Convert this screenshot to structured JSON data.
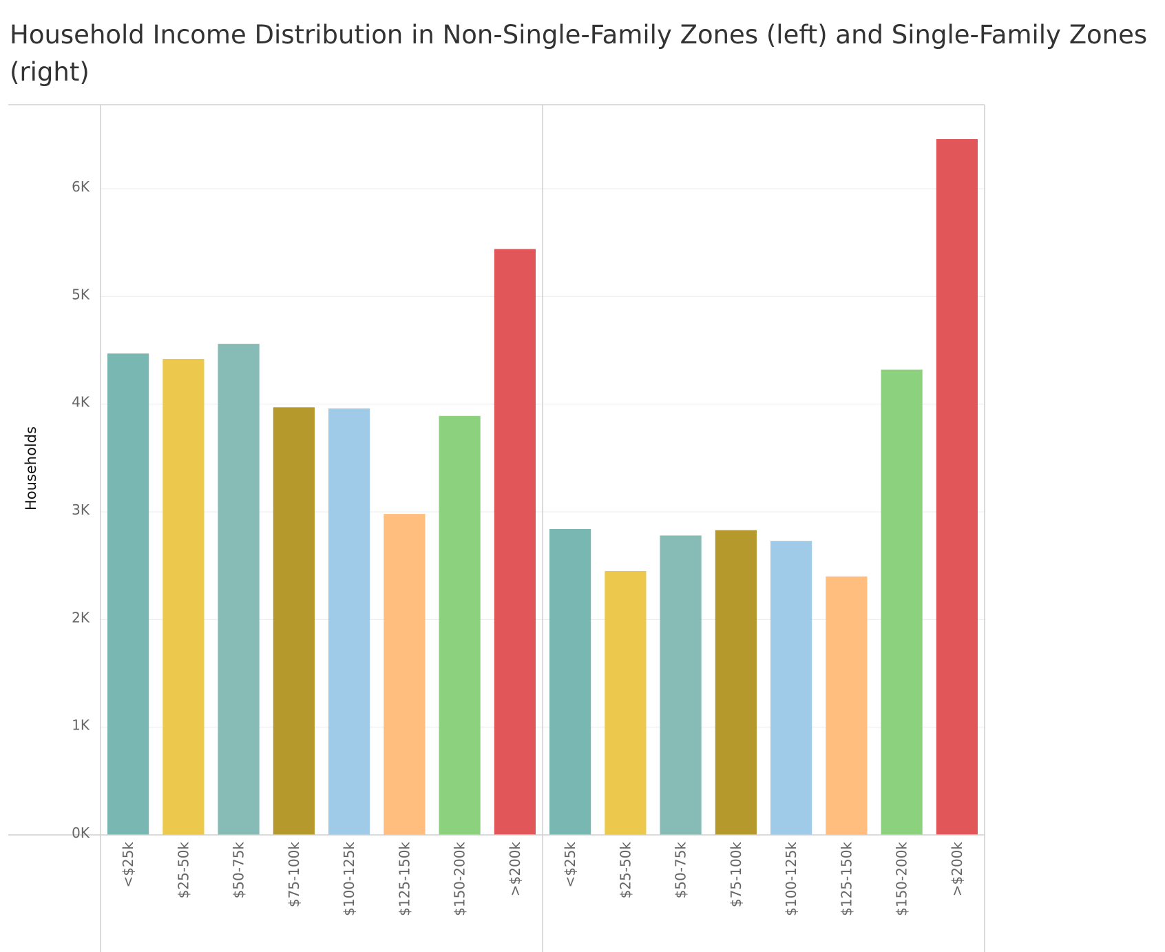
{
  "chart_data": {
    "type": "bar",
    "title": "Household Income Distribution in Non-Single-Family Zones (left) and Single-Family Zones (right)",
    "ylabel": "Households",
    "xlabel": "",
    "ylim": [
      0,
      6780
    ],
    "yticks": [
      {
        "value": 0,
        "label": "0K"
      },
      {
        "value": 1000,
        "label": "1K"
      },
      {
        "value": 2000,
        "label": "2K"
      },
      {
        "value": 3000,
        "label": "3K"
      },
      {
        "value": 4000,
        "label": "4K"
      },
      {
        "value": 5000,
        "label": "5K"
      },
      {
        "value": 6000,
        "label": "6K"
      }
    ],
    "grid": true,
    "legend": "none",
    "categories": [
      "<$25k",
      "$25-50k",
      "$50-75k",
      "$75-100k",
      "$100-125k",
      "$125-150k",
      "$150-200k",
      ">$200k"
    ],
    "colors": [
      "#79b7b2",
      "#ecc94c",
      "#87bcb6",
      "#b6992d",
      "#a0cbe8",
      "#ffbe7d",
      "#8cd17d",
      "#e15759"
    ],
    "panels": [
      {
        "values": [
          4470,
          4420,
          4560,
          3970,
          3960,
          2980,
          3890,
          5440
        ]
      },
      {
        "values": [
          2840,
          2450,
          2780,
          2830,
          2730,
          2400,
          4320,
          6460
        ]
      }
    ]
  }
}
